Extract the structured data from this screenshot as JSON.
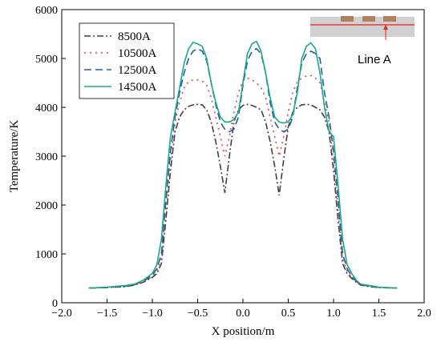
{
  "chart_data": {
    "type": "line",
    "title": "",
    "xlabel": "X position/m",
    "ylabel": "Temperature/K",
    "xlim": [
      -2.0,
      2.0
    ],
    "ylim": [
      0,
      6000
    ],
    "xticks": [
      "−2.0",
      "−1.5",
      "−1.0",
      "−0.5",
      "0.0",
      "0.5",
      "1.0",
      "1.5",
      "2.0"
    ],
    "yticks": [
      "0",
      "1000",
      "2000",
      "3000",
      "4000",
      "5000",
      "6000"
    ],
    "grid": false,
    "legend_position": "top-left",
    "inset_label": "Line A",
    "x": [
      -1.7,
      -1.5,
      -1.3,
      -1.2,
      -1.1,
      -1.0,
      -0.95,
      -0.9,
      -0.85,
      -0.8,
      -0.75,
      -0.7,
      -0.65,
      -0.6,
      -0.55,
      -0.5,
      -0.45,
      -0.4,
      -0.35,
      -0.3,
      -0.25,
      -0.2,
      -0.15,
      -0.1,
      -0.05,
      0.0,
      0.05,
      0.1,
      0.15,
      0.2,
      0.25,
      0.3,
      0.35,
      0.4,
      0.45,
      0.5,
      0.55,
      0.6,
      0.65,
      0.7,
      0.75,
      0.8,
      0.85,
      0.9,
      0.95,
      1.0,
      1.05,
      1.1,
      1.15,
      1.2,
      1.25,
      1.3,
      1.4,
      1.5,
      1.7
    ],
    "series": [
      {
        "name": "8500A",
        "color": "#404040",
        "dash": "8,3,2,3",
        "values": [
          300,
          310,
          330,
          360,
          420,
          520,
          600,
          800,
          1700,
          2700,
          3500,
          3800,
          3950,
          4020,
          4050,
          4060,
          4050,
          3950,
          3700,
          3300,
          2800,
          2250,
          3000,
          3700,
          3950,
          4040,
          4060,
          4040,
          4000,
          3950,
          3700,
          3300,
          2800,
          2200,
          2950,
          3600,
          3900,
          4000,
          4050,
          4060,
          4050,
          4000,
          3950,
          3800,
          3500,
          2700,
          1700,
          800,
          600,
          500,
          420,
          360,
          330,
          310,
          300
        ]
      },
      {
        "name": "10500A",
        "color": "#e8413a",
        "dash": "2,5",
        "values": [
          300,
          310,
          335,
          365,
          430,
          540,
          650,
          900,
          1900,
          2900,
          3700,
          4100,
          4400,
          4530,
          4560,
          4560,
          4540,
          4450,
          4200,
          3800,
          3400,
          3000,
          3400,
          3900,
          4300,
          4550,
          4600,
          4560,
          4500,
          4400,
          4200,
          3800,
          3400,
          3000,
          3400,
          3900,
          4300,
          4520,
          4600,
          4640,
          4650,
          4600,
          4500,
          4100,
          3700,
          2900,
          1900,
          900,
          650,
          520,
          430,
          365,
          335,
          310,
          300
        ]
      },
      {
        "name": "12500A",
        "color": "#1f5fa8",
        "dash": "9,5",
        "values": [
          300,
          315,
          340,
          370,
          440,
          560,
          700,
          1000,
          2100,
          3100,
          3800,
          4300,
          4700,
          5000,
          5150,
          5200,
          5150,
          4950,
          4500,
          4050,
          3700,
          3550,
          3500,
          3550,
          3800,
          4450,
          4950,
          5150,
          5200,
          5100,
          4700,
          4100,
          3700,
          3550,
          3500,
          3550,
          3800,
          4400,
          4900,
          5100,
          5150,
          5100,
          5000,
          4300,
          3800,
          3100,
          2100,
          1000,
          700,
          540,
          440,
          370,
          340,
          315,
          300
        ]
      },
      {
        "name": "14500A",
        "color": "#1aa988",
        "dash": "",
        "values": [
          300,
          320,
          350,
          380,
          460,
          600,
          780,
          1300,
          2400,
          3400,
          3900,
          4400,
          4900,
          5200,
          5330,
          5300,
          5250,
          5000,
          4500,
          4100,
          3800,
          3700,
          3700,
          3750,
          3900,
          4500,
          5100,
          5300,
          5350,
          5150,
          4700,
          4200,
          3800,
          3700,
          3680,
          3700,
          3850,
          4300,
          5000,
          5250,
          5320,
          5200,
          4700,
          4000,
          3500,
          3400,
          2400,
          1300,
          780,
          600,
          460,
          380,
          350,
          320,
          300
        ]
      }
    ]
  }
}
